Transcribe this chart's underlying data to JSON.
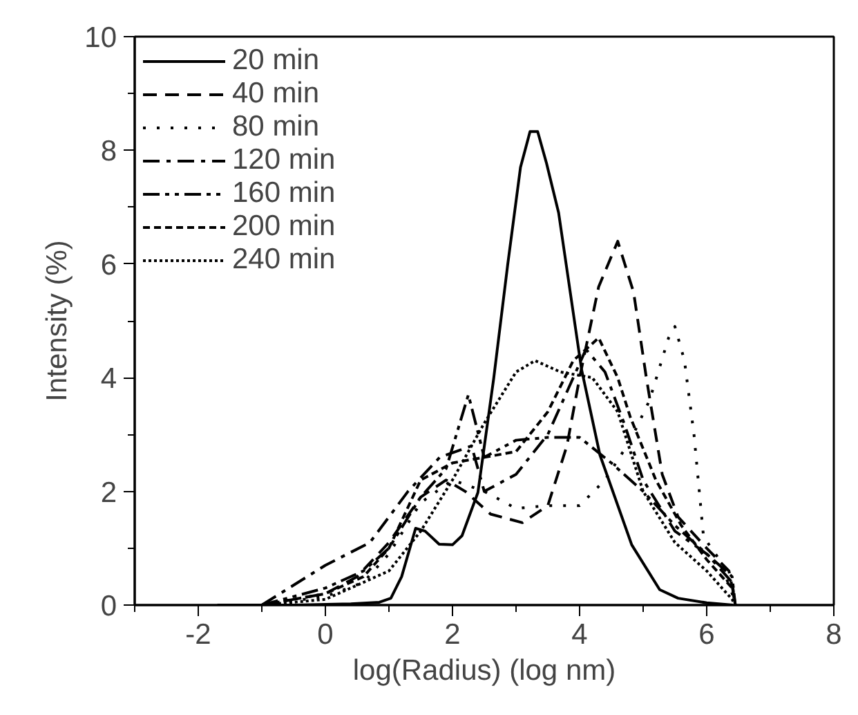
{
  "chart_data": {
    "type": "line",
    "xlabel": "log(Radius) (log nm)",
    "ylabel": "Intensity (%)",
    "xlim": [
      -3,
      8
    ],
    "xticks": [
      -2,
      0,
      2,
      4,
      6,
      8
    ],
    "ylim": [
      0,
      10
    ],
    "yticks": [
      0,
      2,
      4,
      6,
      8,
      10
    ],
    "grid": false,
    "legend": "top left",
    "series": [
      {
        "name": "20 min",
        "color": "#000000",
        "line_style": "solid",
        "x": [
          -1.7,
          -0.5,
          0.4,
          0.85,
          1.03,
          1.2,
          1.42,
          1.57,
          1.79,
          2.0,
          2.15,
          2.4,
          2.65,
          2.87,
          3.07,
          3.22,
          3.34,
          3.48,
          3.67,
          4.03,
          4.32,
          4.82,
          5.26,
          5.55,
          6.0,
          6.41
        ],
        "values": [
          0,
          0,
          0.02,
          0.05,
          0.12,
          0.5,
          1.35,
          1.3,
          1.07,
          1.06,
          1.22,
          1.98,
          4.0,
          6.0,
          7.7,
          8.33,
          8.33,
          7.77,
          6.9,
          4.15,
          2.64,
          1.06,
          0.27,
          0.12,
          0.04,
          0
        ]
      },
      {
        "name": "40 min",
        "color": "#000000",
        "line_style": "dashed",
        "x": [
          -1.0,
          0,
          0.5,
          1.0,
          1.5,
          1.9,
          2.2,
          2.6,
          3.1,
          3.5,
          3.8,
          4.0,
          4.3,
          4.6,
          4.85,
          5.05,
          5.3,
          5.55,
          6.0,
          6.35,
          6.45
        ],
        "values": [
          0,
          0.2,
          0.5,
          1.1,
          1.9,
          2.2,
          2.0,
          1.6,
          1.45,
          1.75,
          2.8,
          4.0,
          5.6,
          6.4,
          5.5,
          4.0,
          2.3,
          1.55,
          1.0,
          0.6,
          0.05
        ]
      },
      {
        "name": "80 min",
        "color": "#000000",
        "line_style": "dotted",
        "x": [
          -1.0,
          0,
          0.6,
          1.0,
          1.5,
          2.0,
          2.5,
          3.0,
          3.5,
          4.0,
          4.4,
          4.8,
          5.1,
          5.4,
          5.5,
          5.65,
          5.8,
          5.95,
          6.2,
          6.45
        ],
        "values": [
          0,
          0.15,
          0.4,
          0.9,
          1.8,
          2.2,
          2.0,
          1.7,
          1.75,
          1.75,
          2.2,
          2.9,
          3.6,
          4.7,
          4.9,
          4.3,
          3.0,
          1.2,
          0.8,
          0.05
        ]
      },
      {
        "name": "120 min",
        "color": "#000000",
        "line_style": "dashdot",
        "x": [
          -1.0,
          0,
          0.7,
          1.3,
          1.8,
          2.3,
          2.5,
          3.0,
          3.5,
          3.9,
          4.1,
          4.4,
          4.7,
          5.0,
          5.5,
          6.0,
          6.4,
          6.45
        ],
        "values": [
          0,
          0.7,
          1.1,
          2.0,
          2.6,
          2.8,
          2.0,
          2.3,
          3.0,
          4.0,
          4.5,
          4.1,
          3.2,
          2.2,
          1.3,
          0.9,
          0.4,
          0
        ]
      },
      {
        "name": "160 min",
        "color": "#000000",
        "line_style": "dashdotdot",
        "x": [
          -1.0,
          0,
          0.6,
          1.0,
          1.5,
          1.9,
          2.25,
          2.5,
          3.0,
          3.5,
          4.0,
          4.5,
          5.0,
          5.5,
          6.0,
          6.4,
          6.45
        ],
        "values": [
          0,
          0.3,
          0.6,
          1.0,
          1.9,
          2.4,
          3.7,
          2.6,
          2.9,
          2.95,
          2.95,
          2.5,
          2.0,
          1.4,
          0.9,
          0.5,
          0
        ]
      },
      {
        "name": "200 min",
        "color": "#000000",
        "line_style": "shortdash",
        "x": [
          -1.0,
          0,
          0.6,
          1.0,
          1.5,
          2.0,
          2.5,
          3.0,
          3.5,
          3.9,
          4.3,
          4.6,
          4.8,
          5.2,
          5.6,
          6.0,
          6.4,
          6.45
        ],
        "values": [
          0,
          0.2,
          0.5,
          1.0,
          2.2,
          2.5,
          2.6,
          2.7,
          3.4,
          4.3,
          4.7,
          4.0,
          3.3,
          2.2,
          1.4,
          0.8,
          0.3,
          0
        ]
      },
      {
        "name": "240 min",
        "color": "#000000",
        "line_style": "densedot",
        "x": [
          -1.0,
          0,
          1.0,
          1.5,
          2.0,
          2.5,
          3.0,
          3.3,
          3.7,
          4.2,
          4.6,
          5.0,
          5.5,
          6.0,
          6.4,
          6.45
        ],
        "values": [
          0,
          0.1,
          0.6,
          1.3,
          2.2,
          3.2,
          4.1,
          4.3,
          4.1,
          4.0,
          3.4,
          2.0,
          1.1,
          0.6,
          0.1,
          0
        ]
      }
    ]
  }
}
